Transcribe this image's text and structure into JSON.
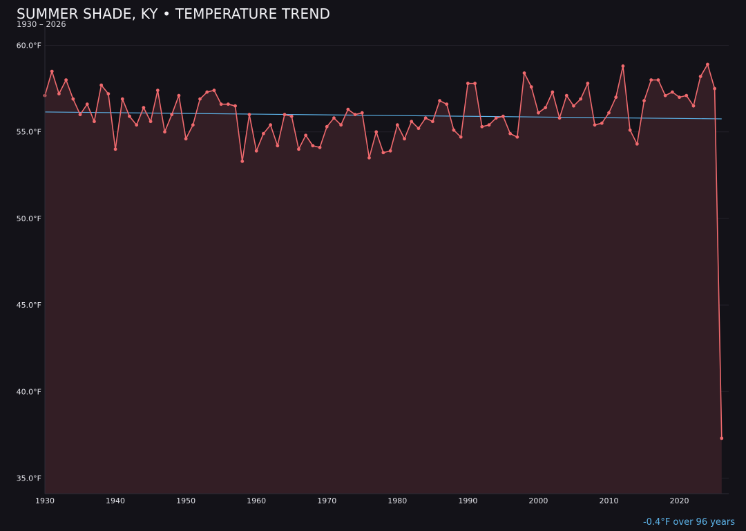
{
  "header": {
    "title": "SUMMER SHADE, KY • TEMPERATURE TREND",
    "subtitle": "1930 – 2026"
  },
  "trend_note": "-0.4°F over 96 years",
  "colors": {
    "background": "#131218",
    "line": "#f06a6e",
    "area": "#331e25",
    "trend": "#5db4ea",
    "grid": "#24222b"
  },
  "chart_data": {
    "type": "line",
    "title": "SUMMER SHADE, KY • TEMPERATURE TREND",
    "subtitle": "1930 – 2026",
    "xlabel": "",
    "ylabel": "",
    "xlim": [
      1930,
      2027
    ],
    "ylim": [
      34.1,
      61.1
    ],
    "x_ticks": [
      1930,
      1940,
      1950,
      1960,
      1970,
      1980,
      1990,
      2000,
      2010,
      2020
    ],
    "x_tick_labels": [
      "1930",
      "1940",
      "1950",
      "1960",
      "1970",
      "1980",
      "1990",
      "2000",
      "2010",
      "2020"
    ],
    "y_ticks": [
      35,
      40,
      45,
      50,
      55,
      60
    ],
    "y_tick_labels": [
      "35.0°F",
      "40.0°F",
      "45.0°F",
      "50.0°F",
      "55.0°F",
      "60.0°F"
    ],
    "grid": "horizontal",
    "area_fill": true,
    "x": [
      1930,
      1931,
      1932,
      1933,
      1934,
      1935,
      1936,
      1937,
      1938,
      1939,
      1940,
      1941,
      1942,
      1943,
      1944,
      1945,
      1946,
      1947,
      1948,
      1949,
      1950,
      1951,
      1952,
      1953,
      1954,
      1955,
      1956,
      1957,
      1958,
      1959,
      1960,
      1961,
      1962,
      1963,
      1964,
      1965,
      1966,
      1967,
      1968,
      1969,
      1970,
      1971,
      1972,
      1973,
      1974,
      1975,
      1976,
      1977,
      1978,
      1979,
      1980,
      1981,
      1982,
      1983,
      1984,
      1985,
      1986,
      1987,
      1988,
      1989,
      1990,
      1991,
      1992,
      1993,
      1994,
      1995,
      1996,
      1997,
      1998,
      1999,
      2000,
      2001,
      2002,
      2003,
      2004,
      2005,
      2006,
      2007,
      2008,
      2009,
      2010,
      2011,
      2012,
      2013,
      2014,
      2015,
      2016,
      2017,
      2018,
      2019,
      2020,
      2021,
      2022,
      2023,
      2024,
      2025,
      2026
    ],
    "series": [
      {
        "values": [
          57.1,
          58.5,
          57.2,
          58.0,
          56.9,
          56.0,
          56.6,
          55.6,
          57.7,
          57.2,
          54.0,
          56.9,
          55.9,
          55.4,
          56.4,
          55.6,
          57.4,
          55.0,
          56.0,
          57.1,
          54.6,
          55.4,
          56.9,
          57.3,
          57.4,
          56.6,
          56.6,
          56.5,
          53.3,
          56.0,
          53.9,
          54.9,
          55.4,
          54.2,
          56.0,
          55.9,
          54.0,
          54.8,
          54.2,
          54.1,
          55.3,
          55.8,
          55.4,
          56.3,
          56.0,
          56.1,
          53.5,
          55.0,
          53.8,
          53.9,
          55.4,
          54.6,
          55.6,
          55.2,
          55.8,
          55.6,
          56.8,
          56.6,
          55.1,
          54.7,
          57.8,
          57.8,
          55.3,
          55.4,
          55.8,
          55.9,
          54.9,
          54.7,
          58.4,
          57.6,
          56.1,
          56.4,
          57.3,
          55.8,
          57.1,
          56.5,
          56.9,
          57.8,
          55.4,
          55.5,
          56.1,
          57.0,
          58.8,
          55.1,
          54.3,
          56.8,
          58.0,
          58.0,
          57.1,
          57.3,
          57.0,
          57.1,
          56.5,
          58.2,
          58.9,
          57.5,
          37.3
        ]
      }
    ],
    "trend_line": {
      "start": [
        1930,
        56.15
      ],
      "end": [
        2026,
        55.75
      ]
    }
  }
}
